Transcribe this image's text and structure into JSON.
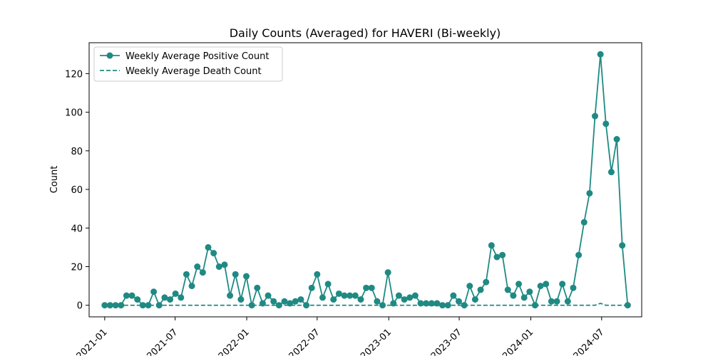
{
  "chart_data": {
    "type": "line",
    "title": "Daily Counts (Averaged) for HAVERI (Bi-weekly)",
    "xlabel": "",
    "ylabel": "Count",
    "x_type": "date",
    "xlim": [
      "2020-11-22",
      "2024-10-12"
    ],
    "ylim": [
      -6,
      136
    ],
    "yticks": [
      0,
      20,
      40,
      60,
      80,
      100,
      120
    ],
    "xticks": [
      "2021-01",
      "2021-07",
      "2022-01",
      "2022-07",
      "2023-01",
      "2023-07",
      "2024-01",
      "2024-07"
    ],
    "grid": false,
    "legend_position": "top-left",
    "color": "#1f8a83",
    "series": [
      {
        "name": "Weekly Average Positive Count",
        "style": "solid",
        "markers": true,
        "points": [
          [
            "2021-01-01",
            0
          ],
          [
            "2021-01-15",
            0
          ],
          [
            "2021-01-29",
            0
          ],
          [
            "2021-02-12",
            0
          ],
          [
            "2021-02-26",
            5
          ],
          [
            "2021-03-12",
            5
          ],
          [
            "2021-03-26",
            3
          ],
          [
            "2021-04-09",
            0
          ],
          [
            "2021-04-23",
            0
          ],
          [
            "2021-05-07",
            7
          ],
          [
            "2021-05-21",
            0
          ],
          [
            "2021-06-04",
            4
          ],
          [
            "2021-06-18",
            3
          ],
          [
            "2021-07-02",
            6
          ],
          [
            "2021-07-16",
            4
          ],
          [
            "2021-07-30",
            16
          ],
          [
            "2021-08-13",
            10
          ],
          [
            "2021-08-27",
            20
          ],
          [
            "2021-09-10",
            17
          ],
          [
            "2021-09-24",
            30
          ],
          [
            "2021-10-08",
            27
          ],
          [
            "2021-10-22",
            20
          ],
          [
            "2021-11-05",
            21
          ],
          [
            "2021-11-19",
            5
          ],
          [
            "2021-12-03",
            16
          ],
          [
            "2021-12-17",
            3
          ],
          [
            "2021-12-31",
            15
          ],
          [
            "2022-01-14",
            0
          ],
          [
            "2022-01-28",
            9
          ],
          [
            "2022-02-11",
            1
          ],
          [
            "2022-02-25",
            5
          ],
          [
            "2022-03-11",
            2
          ],
          [
            "2022-03-25",
            0
          ],
          [
            "2022-04-08",
            2
          ],
          [
            "2022-04-22",
            1
          ],
          [
            "2022-05-06",
            2
          ],
          [
            "2022-05-20",
            3
          ],
          [
            "2022-06-03",
            0
          ],
          [
            "2022-06-17",
            9
          ],
          [
            "2022-07-01",
            16
          ],
          [
            "2022-07-15",
            4
          ],
          [
            "2022-07-29",
            11
          ],
          [
            "2022-08-12",
            3
          ],
          [
            "2022-08-26",
            6
          ],
          [
            "2022-09-09",
            5
          ],
          [
            "2022-09-23",
            5
          ],
          [
            "2022-10-07",
            5
          ],
          [
            "2022-10-21",
            3
          ],
          [
            "2022-11-04",
            9
          ],
          [
            "2022-11-18",
            9
          ],
          [
            "2022-12-02",
            2
          ],
          [
            "2022-12-16",
            0
          ],
          [
            "2022-12-30",
            17
          ],
          [
            "2023-01-13",
            1
          ],
          [
            "2023-01-27",
            5
          ],
          [
            "2023-02-10",
            3
          ],
          [
            "2023-02-24",
            4
          ],
          [
            "2023-03-10",
            5
          ],
          [
            "2023-03-24",
            1
          ],
          [
            "2023-04-07",
            1
          ],
          [
            "2023-04-21",
            1
          ],
          [
            "2023-05-05",
            1
          ],
          [
            "2023-05-19",
            0
          ],
          [
            "2023-06-02",
            0
          ],
          [
            "2023-06-16",
            5
          ],
          [
            "2023-06-30",
            2
          ],
          [
            "2023-07-14",
            0
          ],
          [
            "2023-07-28",
            10
          ],
          [
            "2023-08-11",
            3
          ],
          [
            "2023-08-25",
            8
          ],
          [
            "2023-09-08",
            12
          ],
          [
            "2023-09-22",
            31
          ],
          [
            "2023-10-06",
            25
          ],
          [
            "2023-10-20",
            26
          ],
          [
            "2023-11-03",
            8
          ],
          [
            "2023-11-17",
            5
          ],
          [
            "2023-12-01",
            11
          ],
          [
            "2023-12-15",
            4
          ],
          [
            "2023-12-29",
            7
          ],
          [
            "2024-01-12",
            0
          ],
          [
            "2024-01-26",
            10
          ],
          [
            "2024-02-09",
            11
          ],
          [
            "2024-02-23",
            2
          ],
          [
            "2024-03-08",
            2
          ],
          [
            "2024-03-22",
            11
          ],
          [
            "2024-04-05",
            2
          ],
          [
            "2024-04-19",
            9
          ],
          [
            "2024-05-03",
            26
          ],
          [
            "2024-05-17",
            43
          ],
          [
            "2024-05-31",
            58
          ],
          [
            "2024-06-14",
            98
          ],
          [
            "2024-06-28",
            130
          ],
          [
            "2024-07-12",
            94
          ],
          [
            "2024-07-26",
            69
          ],
          [
            "2024-08-09",
            86
          ],
          [
            "2024-08-23",
            31
          ],
          [
            "2024-09-06",
            0
          ]
        ]
      },
      {
        "name": "Weekly Average Death Count",
        "style": "dashed",
        "markers": false,
        "points": [
          [
            "2021-01-01",
            0
          ],
          [
            "2024-06-14",
            0
          ],
          [
            "2024-06-28",
            1
          ],
          [
            "2024-07-12",
            0
          ],
          [
            "2024-09-06",
            0
          ]
        ]
      }
    ]
  }
}
